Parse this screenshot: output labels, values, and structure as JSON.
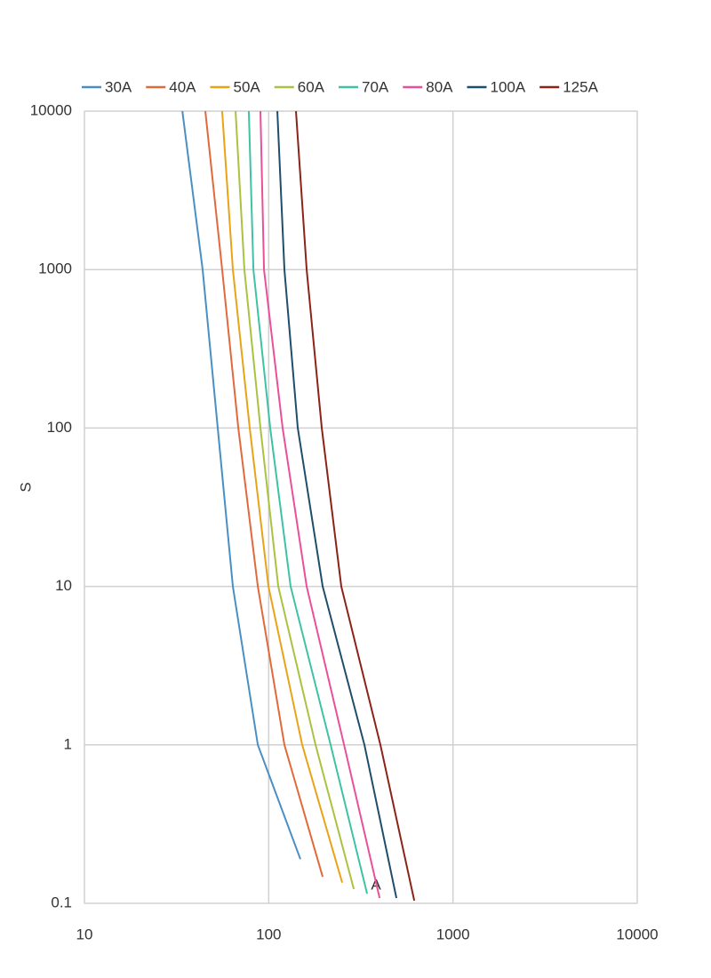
{
  "chart_data": {
    "type": "line",
    "x_label": "A",
    "y_label": "S",
    "xscale": "log",
    "yscale": "log",
    "grid": true,
    "legend": "top",
    "xlim": [
      10,
      10000
    ],
    "ylim": [
      0.1,
      10000
    ],
    "xticks": [
      10,
      100,
      1000,
      10000
    ],
    "yticks": [
      0.1,
      1,
      10,
      100,
      1000,
      10000
    ],
    "series": [
      {
        "name": "30A",
        "color": "#4a8fc4",
        "x": [
          34,
          43.8,
          52.9,
          63.9,
          87.3,
          148.6
        ],
        "values": [
          10000,
          1000,
          100,
          10,
          1,
          0.19
        ]
      },
      {
        "name": "40A",
        "color": "#e06a3a",
        "x": [
          45.3,
          55.9,
          68.4,
          87.3,
          121.7,
          196.3
        ],
        "values": [
          10000,
          1000,
          100,
          10,
          1,
          0.147
        ]
      },
      {
        "name": "50A",
        "color": "#e8a317",
        "x": [
          55.9,
          63.9,
          78.9,
          99.7,
          152,
          250.6
        ],
        "values": [
          10000,
          1000,
          100,
          10,
          1,
          0.135
        ]
      },
      {
        "name": "60A",
        "color": "#a9c23f",
        "x": [
          66.1,
          73.8,
          90.2,
          112.7,
          179.6,
          289.7
        ],
        "values": [
          10000,
          1000,
          100,
          10,
          1,
          0.123
        ]
      },
      {
        "name": "70A",
        "color": "#3fc1a6",
        "x": [
          78,
          82.6,
          101.9,
          131.5,
          216.8,
          342
        ],
        "values": [
          10000,
          1000,
          100,
          10,
          1,
          0.115
        ]
      },
      {
        "name": "80A",
        "color": "#e8509a",
        "x": [
          90.2,
          94.3,
          119,
          160.7,
          256.5,
          399.9
        ],
        "values": [
          10000,
          1000,
          100,
          10,
          1,
          0.108
        ]
      },
      {
        "name": "100A",
        "color": "#1f4e6b",
        "x": [
          111.4,
          121.7,
          143.8,
          196.3,
          330.8,
          493.4
        ],
        "values": [
          10000,
          1000,
          100,
          10,
          1,
          0.108
        ]
      },
      {
        "name": "125A",
        "color": "#8b2318",
        "x": [
          140.6,
          160.7,
          194.1,
          247.7,
          403.9,
          616.6
        ],
        "values": [
          10000,
          1000,
          100,
          10,
          1,
          0.104
        ]
      }
    ]
  }
}
